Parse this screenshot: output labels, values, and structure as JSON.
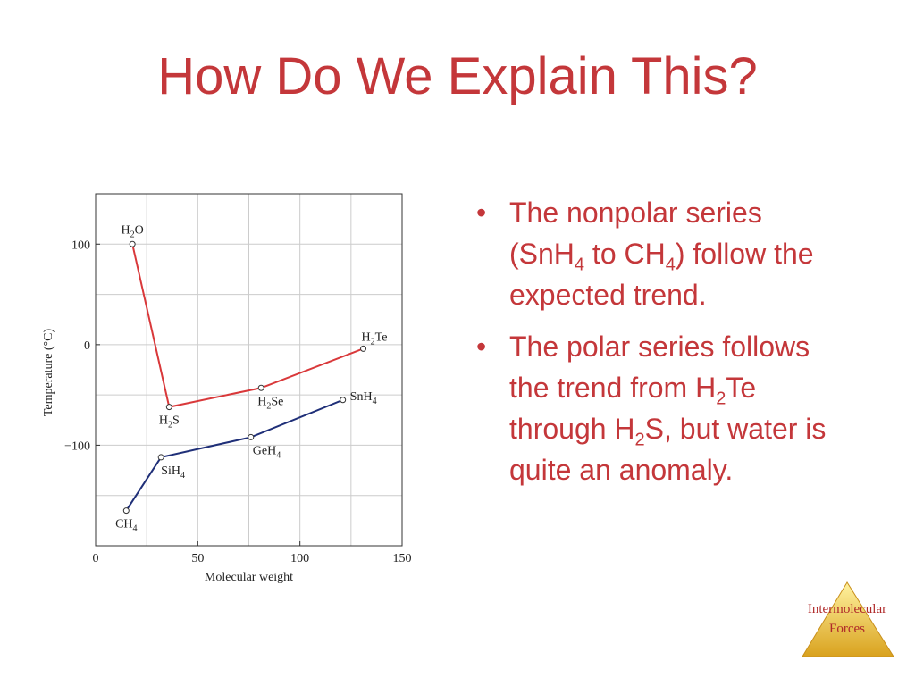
{
  "title": "How Do We Explain This?",
  "bullets": [
    [
      {
        "text": "The nonpolar series (SnH"
      },
      {
        "sub": "4"
      },
      {
        "text": " to CH"
      },
      {
        "sub": "4"
      },
      {
        "text": ") follow the expected trend."
      }
    ],
    [
      {
        "text": "The polar series follows the trend from H"
      },
      {
        "sub": "2"
      },
      {
        "text": "Te through H"
      },
      {
        "sub": "2"
      },
      {
        "text": "S, but water is quite an anomaly."
      }
    ]
  ],
  "logo": [
    "Intermolecular",
    "Forces"
  ],
  "chart_data": {
    "type": "line",
    "x_label": "Molecular weight",
    "y_label": "Temperature (°C)",
    "xlim": [
      0,
      150
    ],
    "xticks": [
      0,
      50,
      100,
      150
    ],
    "x_minor_grid": [
      25,
      75,
      125
    ],
    "ylim": [
      -200,
      150
    ],
    "yticks": [
      {
        "value": -100,
        "label": "−100"
      },
      0,
      100
    ],
    "y_minor_grid": [
      -150,
      -50,
      50
    ],
    "grid": true,
    "series": [
      {
        "color": "#d9383a",
        "x": [
          18,
          36,
          81,
          131
        ],
        "values": [
          100,
          -62,
          -43,
          -4
        ],
        "point_labels": [
          [
            {
              "text": "H"
            },
            {
              "sub": "2"
            },
            {
              "text": "O"
            }
          ],
          [
            {
              "text": "H"
            },
            {
              "sub": "2"
            },
            {
              "text": "S"
            }
          ],
          [
            {
              "text": "H"
            },
            {
              "sub": "2"
            },
            {
              "text": "Se"
            }
          ],
          [
            {
              "text": "H"
            },
            {
              "sub": "2"
            },
            {
              "text": "Te"
            }
          ]
        ]
      },
      {
        "color": "#1f2f78",
        "x": [
          15,
          32,
          76,
          121
        ],
        "values": [
          -165,
          -112,
          -92,
          -55
        ],
        "point_labels": [
          [
            {
              "text": "CH"
            },
            {
              "sub": "4"
            }
          ],
          [
            {
              "text": "SiH"
            },
            {
              "sub": "4"
            }
          ],
          [
            {
              "text": "GeH"
            },
            {
              "sub": "4"
            }
          ],
          [
            {
              "text": "SnH"
            },
            {
              "sub": "4"
            }
          ]
        ]
      }
    ]
  }
}
